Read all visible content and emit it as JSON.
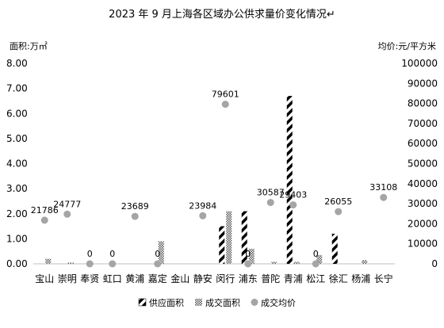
{
  "chart_data": {
    "type": "bar",
    "title": "2023 年 9 月上海各区域办公供求量价变化情况↵",
    "left_axis_label": "面积:万㎡",
    "right_axis_label": "均价:元/平方米",
    "left_ticks": [
      "0.00",
      "1.00",
      "2.00",
      "3.00",
      "4.00",
      "5.00",
      "6.00",
      "7.00",
      "8.00"
    ],
    "right_ticks": [
      "0",
      "10000",
      "20000",
      "30000",
      "40000",
      "50000",
      "60000",
      "70000",
      "80000",
      "90000",
      "100000"
    ],
    "ylim_left": [
      0,
      8
    ],
    "ylim_right": [
      0,
      100000
    ],
    "categories": [
      "宝山",
      "崇明",
      "奉贤",
      "虹口",
      "黄浦",
      "嘉定",
      "金山",
      "静安",
      "闵行",
      "浦东",
      "普陀",
      "青浦",
      "松江",
      "徐汇",
      "杨浦",
      "长宁"
    ],
    "series": [
      {
        "name": "供应面积",
        "type": "bar",
        "axis": "left",
        "values": [
          0,
          0,
          0,
          0,
          0,
          0,
          0,
          0,
          1.5,
          2.1,
          0,
          6.7,
          0,
          1.2,
          0,
          0
        ]
      },
      {
        "name": "成交面积",
        "type": "bar",
        "axis": "left",
        "values": [
          0.2,
          0.05,
          0,
          0,
          0,
          0.9,
          0,
          0,
          2.1,
          0.6,
          0.08,
          0.08,
          0.35,
          0,
          0.15,
          0
        ]
      },
      {
        "name": "成交均价",
        "type": "scatter",
        "axis": "right",
        "values": [
          21786,
          24777,
          0,
          0,
          23689,
          0,
          null,
          23984,
          79601,
          0,
          30587,
          29403,
          0,
          26055,
          null,
          33108
        ],
        "labels": [
          "21786",
          "24777",
          "0",
          "0",
          "23689",
          "0",
          "",
          "23984",
          "79601",
          "0",
          "30587",
          "29403",
          "0",
          "26055",
          "",
          "33108"
        ]
      }
    ],
    "legend_position": "bottom",
    "grid": false
  }
}
